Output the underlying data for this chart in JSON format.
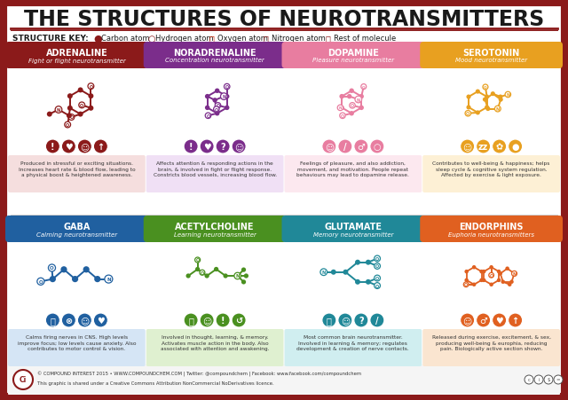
{
  "title": "THE STRUCTURES OF NEUROTRANSMITTERS",
  "bg_outer": "#8B1A1A",
  "bg_inner": "#FFFFFF",
  "neurotransmitters": [
    {
      "name": "ADRENALINE",
      "subtitle": "Fight or flight neurotransmitter",
      "color": "#8B1A1A",
      "bg_desc": "#F5DEDE",
      "description": "Produced in stressful or exciting situations.\nIncreases heart rate & blood flow, leading to\na physical boost & heightened awareness.",
      "row": 0,
      "col": 0
    },
    {
      "name": "NORADRENALINE",
      "subtitle": "Concentration neurotransmitter",
      "color": "#7B2D8B",
      "bg_desc": "#F0E0F5",
      "description": "Affects attention & responding actions in the\nbrain, & involved in fight or flight response.\nConstricts blood vessels, increasing blood flow.",
      "row": 0,
      "col": 1
    },
    {
      "name": "DOPAMINE",
      "subtitle": "Pleasure neurotransmitter",
      "color": "#E87DA0",
      "bg_desc": "#FCE8EF",
      "description": "Feelings of pleasure, and also addiction,\nmovement, and motivation. People repeat\nbehaviours may lead to dopamine release.",
      "row": 0,
      "col": 2
    },
    {
      "name": "SEROTONIN",
      "subtitle": "Mood neurotransmitter",
      "color": "#E8A020",
      "bg_desc": "#FDF0D5",
      "description": "Contributes to well-being & happiness; helps\nsleep cycle & cognitive system regulation.\nAffected by exercise & light exposure.",
      "row": 0,
      "col": 3
    },
    {
      "name": "GABA",
      "subtitle": "Calming neurotransmitter",
      "color": "#2060A0",
      "bg_desc": "#D5E5F5",
      "description": "Calms firing nerves in CNS. High levels\nimprove focus; low levels cause anxiety. Also\ncontributes to motor control & vision.",
      "row": 1,
      "col": 0
    },
    {
      "name": "ACETYLCHOLINE",
      "subtitle": "Learning neurotransmitter",
      "color": "#4A9020",
      "bg_desc": "#DFF0D0",
      "description": "Involved in thought, learning, & memory.\nActivates muscle action in the body. Also\nassociated with attention and awakening.",
      "row": 1,
      "col": 1
    },
    {
      "name": "GLUTAMATE",
      "subtitle": "Memory neurotransmitter",
      "color": "#208898",
      "bg_desc": "#D0EEF0",
      "description": "Most common brain neurotransmitter.\nInvolved in learning & memory; regulates\ndevelopment & creation of nerve contacts.",
      "row": 1,
      "col": 2
    },
    {
      "name": "ENDORPHINS",
      "subtitle": "Euphoria neurotransmitters",
      "color": "#E06020",
      "bg_desc": "#FAE5D0",
      "description": "Released during exercise, excitement, & sex,\nproducing well-being & europhia, reducing\npain. Biologically active section shown.",
      "row": 1,
      "col": 3
    }
  ],
  "footer_text": "© COMPOUND INTEREST 2015 • WWW.COMPOUNDCHEM.COM | Twitter: @compoundchem | Facebook: www.facebook.com/compoundchem",
  "footer_text2": "This graphic is shared under a Creative Commons Attribution NonCommercial NoDerivatives licence.",
  "footer_ci_color": "#8B1A1A"
}
